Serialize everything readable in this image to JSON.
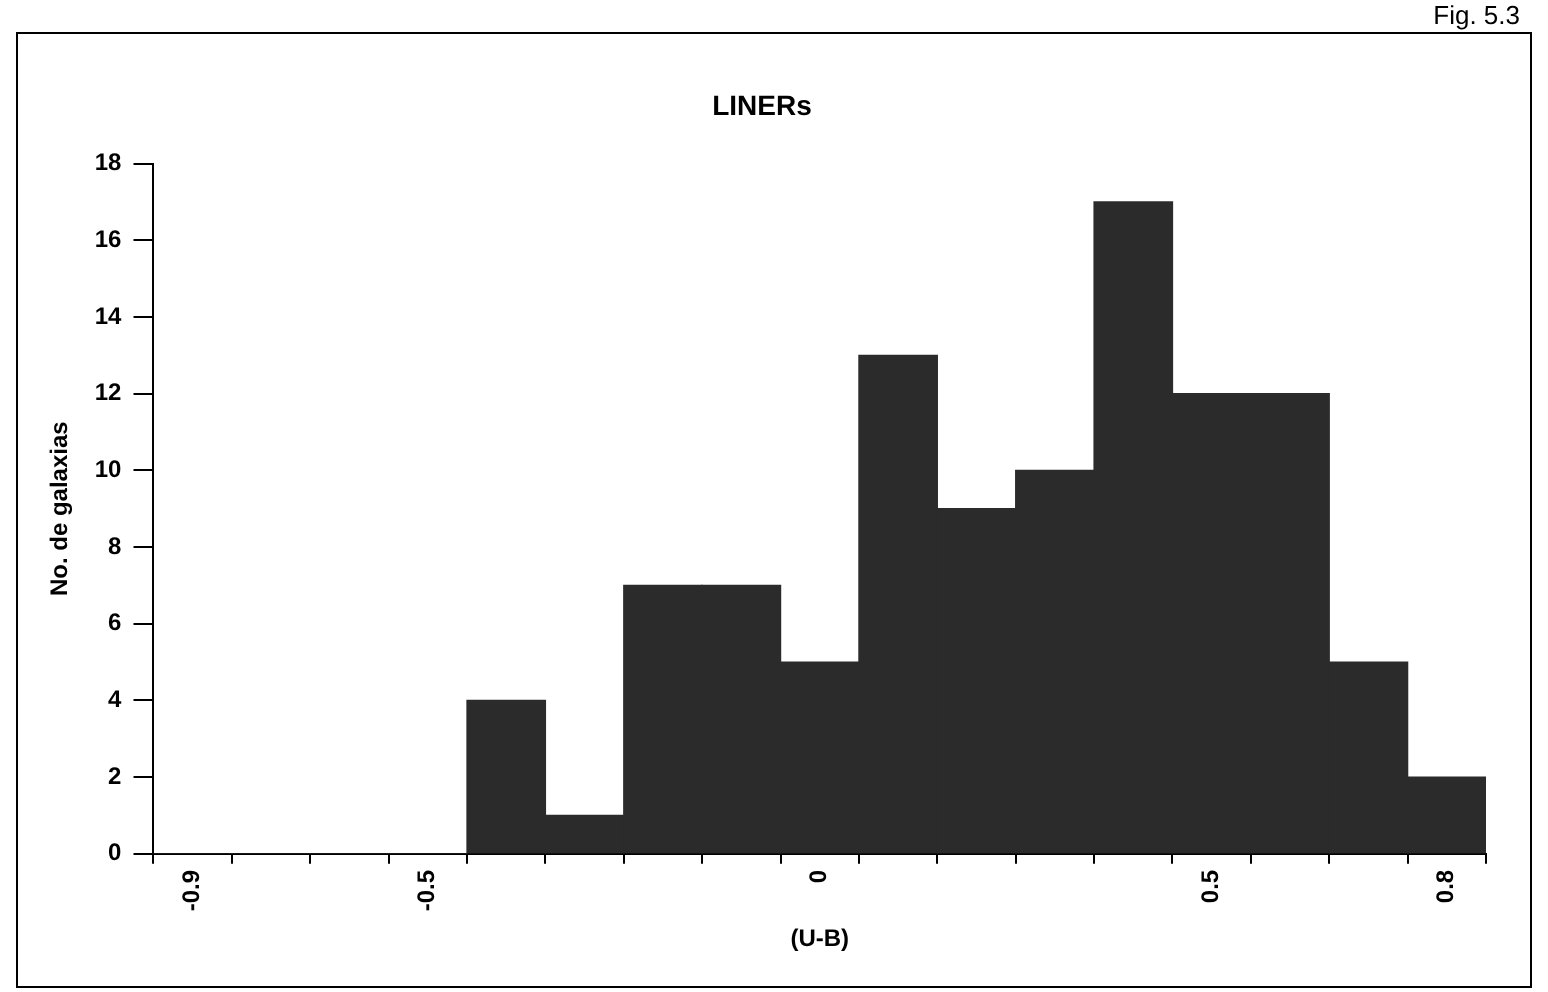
{
  "chart_data": {
    "type": "bar",
    "title": "LINERs",
    "xlabel": "(U-B)",
    "ylabel": "No. de galaxias",
    "categories": [
      "-0.9",
      null,
      null,
      "-0.5",
      null,
      null,
      null,
      null,
      "0",
      null,
      null,
      null,
      null,
      "0.5",
      null,
      null,
      "0.8"
    ],
    "values": [
      0,
      0,
      0,
      0,
      4,
      1,
      7,
      7,
      5,
      13,
      9,
      10,
      17,
      12,
      12,
      5,
      2
    ],
    "color": "#2b2b2b",
    "ylim": [
      0,
      18
    ],
    "yticks": [
      0,
      2,
      4,
      6,
      8,
      10,
      12,
      14,
      16,
      18
    ],
    "grid": false,
    "legend": false,
    "annotations": [
      "Fig. 5.3"
    ]
  }
}
